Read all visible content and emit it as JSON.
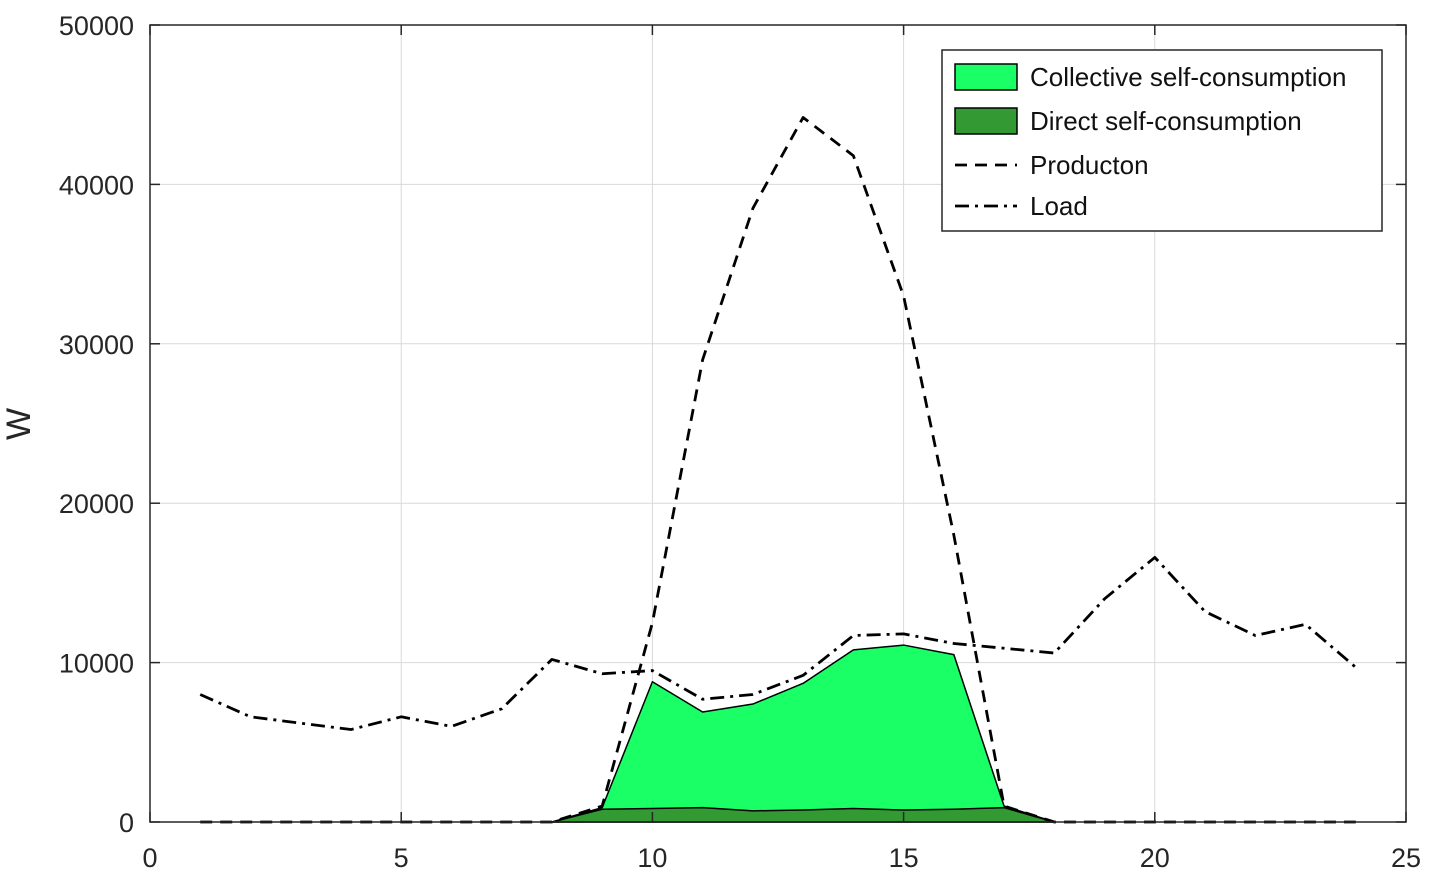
{
  "chart_data": {
    "type": "area",
    "title": "",
    "xlabel": "",
    "ylabel": "W",
    "xlim": [
      0,
      25
    ],
    "ylim": [
      0,
      50000
    ],
    "xticks": [
      "0",
      "5",
      "10",
      "15",
      "20",
      "25"
    ],
    "yticks": [
      "0",
      "10000",
      "20000",
      "30000",
      "40000",
      "50000"
    ],
    "grid": true,
    "legend_position": "top-right",
    "colors": {
      "collective": "#1aff66",
      "direct": "#339933",
      "line": "#000000"
    },
    "series": [
      {
        "name": "Collective self-consumption",
        "style": "filled-area",
        "x": [
          8,
          9,
          10,
          11,
          12,
          13,
          14,
          15,
          16,
          17,
          18
        ],
        "values": [
          0,
          900,
          8800,
          6900,
          7400,
          8700,
          10800,
          11100,
          10500,
          1000,
          0
        ]
      },
      {
        "name": "Direct self-consumption",
        "style": "filled-area",
        "x": [
          8,
          9,
          10,
          11,
          12,
          13,
          14,
          15,
          16,
          17,
          18
        ],
        "values": [
          0,
          800,
          850,
          900,
          700,
          750,
          850,
          750,
          800,
          900,
          0
        ]
      },
      {
        "name": "Producton",
        "style": "dashed",
        "x": [
          1,
          2,
          3,
          4,
          5,
          6,
          7,
          8,
          9,
          10,
          11,
          12,
          13,
          14,
          15,
          16,
          17,
          18,
          19,
          20,
          21,
          22,
          23,
          24
        ],
        "values": [
          0,
          0,
          0,
          0,
          0,
          0,
          0,
          0,
          1000,
          12500,
          29000,
          38500,
          44200,
          41800,
          33000,
          18000,
          1000,
          0,
          0,
          0,
          0,
          0,
          0,
          0
        ]
      },
      {
        "name": "Load",
        "style": "dash-dot",
        "x": [
          1,
          2,
          3,
          4,
          5,
          6,
          7,
          8,
          9,
          10,
          11,
          12,
          13,
          14,
          15,
          16,
          17,
          18,
          19,
          20,
          21,
          22,
          23,
          24
        ],
        "values": [
          8000,
          6600,
          6200,
          5800,
          6600,
          6000,
          7100,
          10200,
          9300,
          9500,
          7700,
          8000,
          9200,
          11700,
          11800,
          11200,
          10900,
          10600,
          14000,
          16600,
          13200,
          11700,
          12400,
          9700
        ]
      }
    ]
  }
}
